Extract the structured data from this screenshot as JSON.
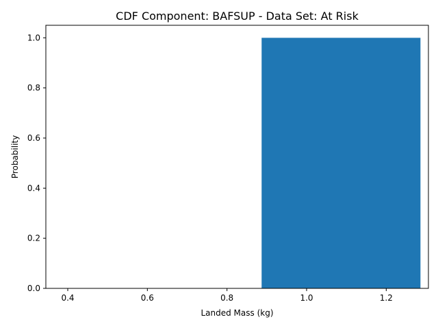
{
  "chart_data": {
    "type": "bar",
    "title": "CDF Component: BAFSUP - Data Set: At Risk",
    "xlabel": "Landed Mass (kg)",
    "ylabel": "Probability",
    "bars": [
      {
        "x_start": 0.887,
        "x_end": 1.286,
        "value": 1.0
      }
    ],
    "xlim": [
      0.345,
      1.306
    ],
    "ylim": [
      0.0,
      1.05
    ],
    "xticks": [
      0.4,
      0.6,
      0.8,
      1.0,
      1.2
    ],
    "xtick_labels": [
      "0.4",
      "0.6",
      "0.8",
      "1.0",
      "1.2"
    ],
    "yticks": [
      0.0,
      0.2,
      0.4,
      0.6,
      0.8,
      1.0
    ],
    "ytick_labels": [
      "0.0",
      "0.2",
      "0.4",
      "0.6",
      "0.8",
      "1.0"
    ],
    "grid": false,
    "bar_color": "#1f77b4"
  }
}
